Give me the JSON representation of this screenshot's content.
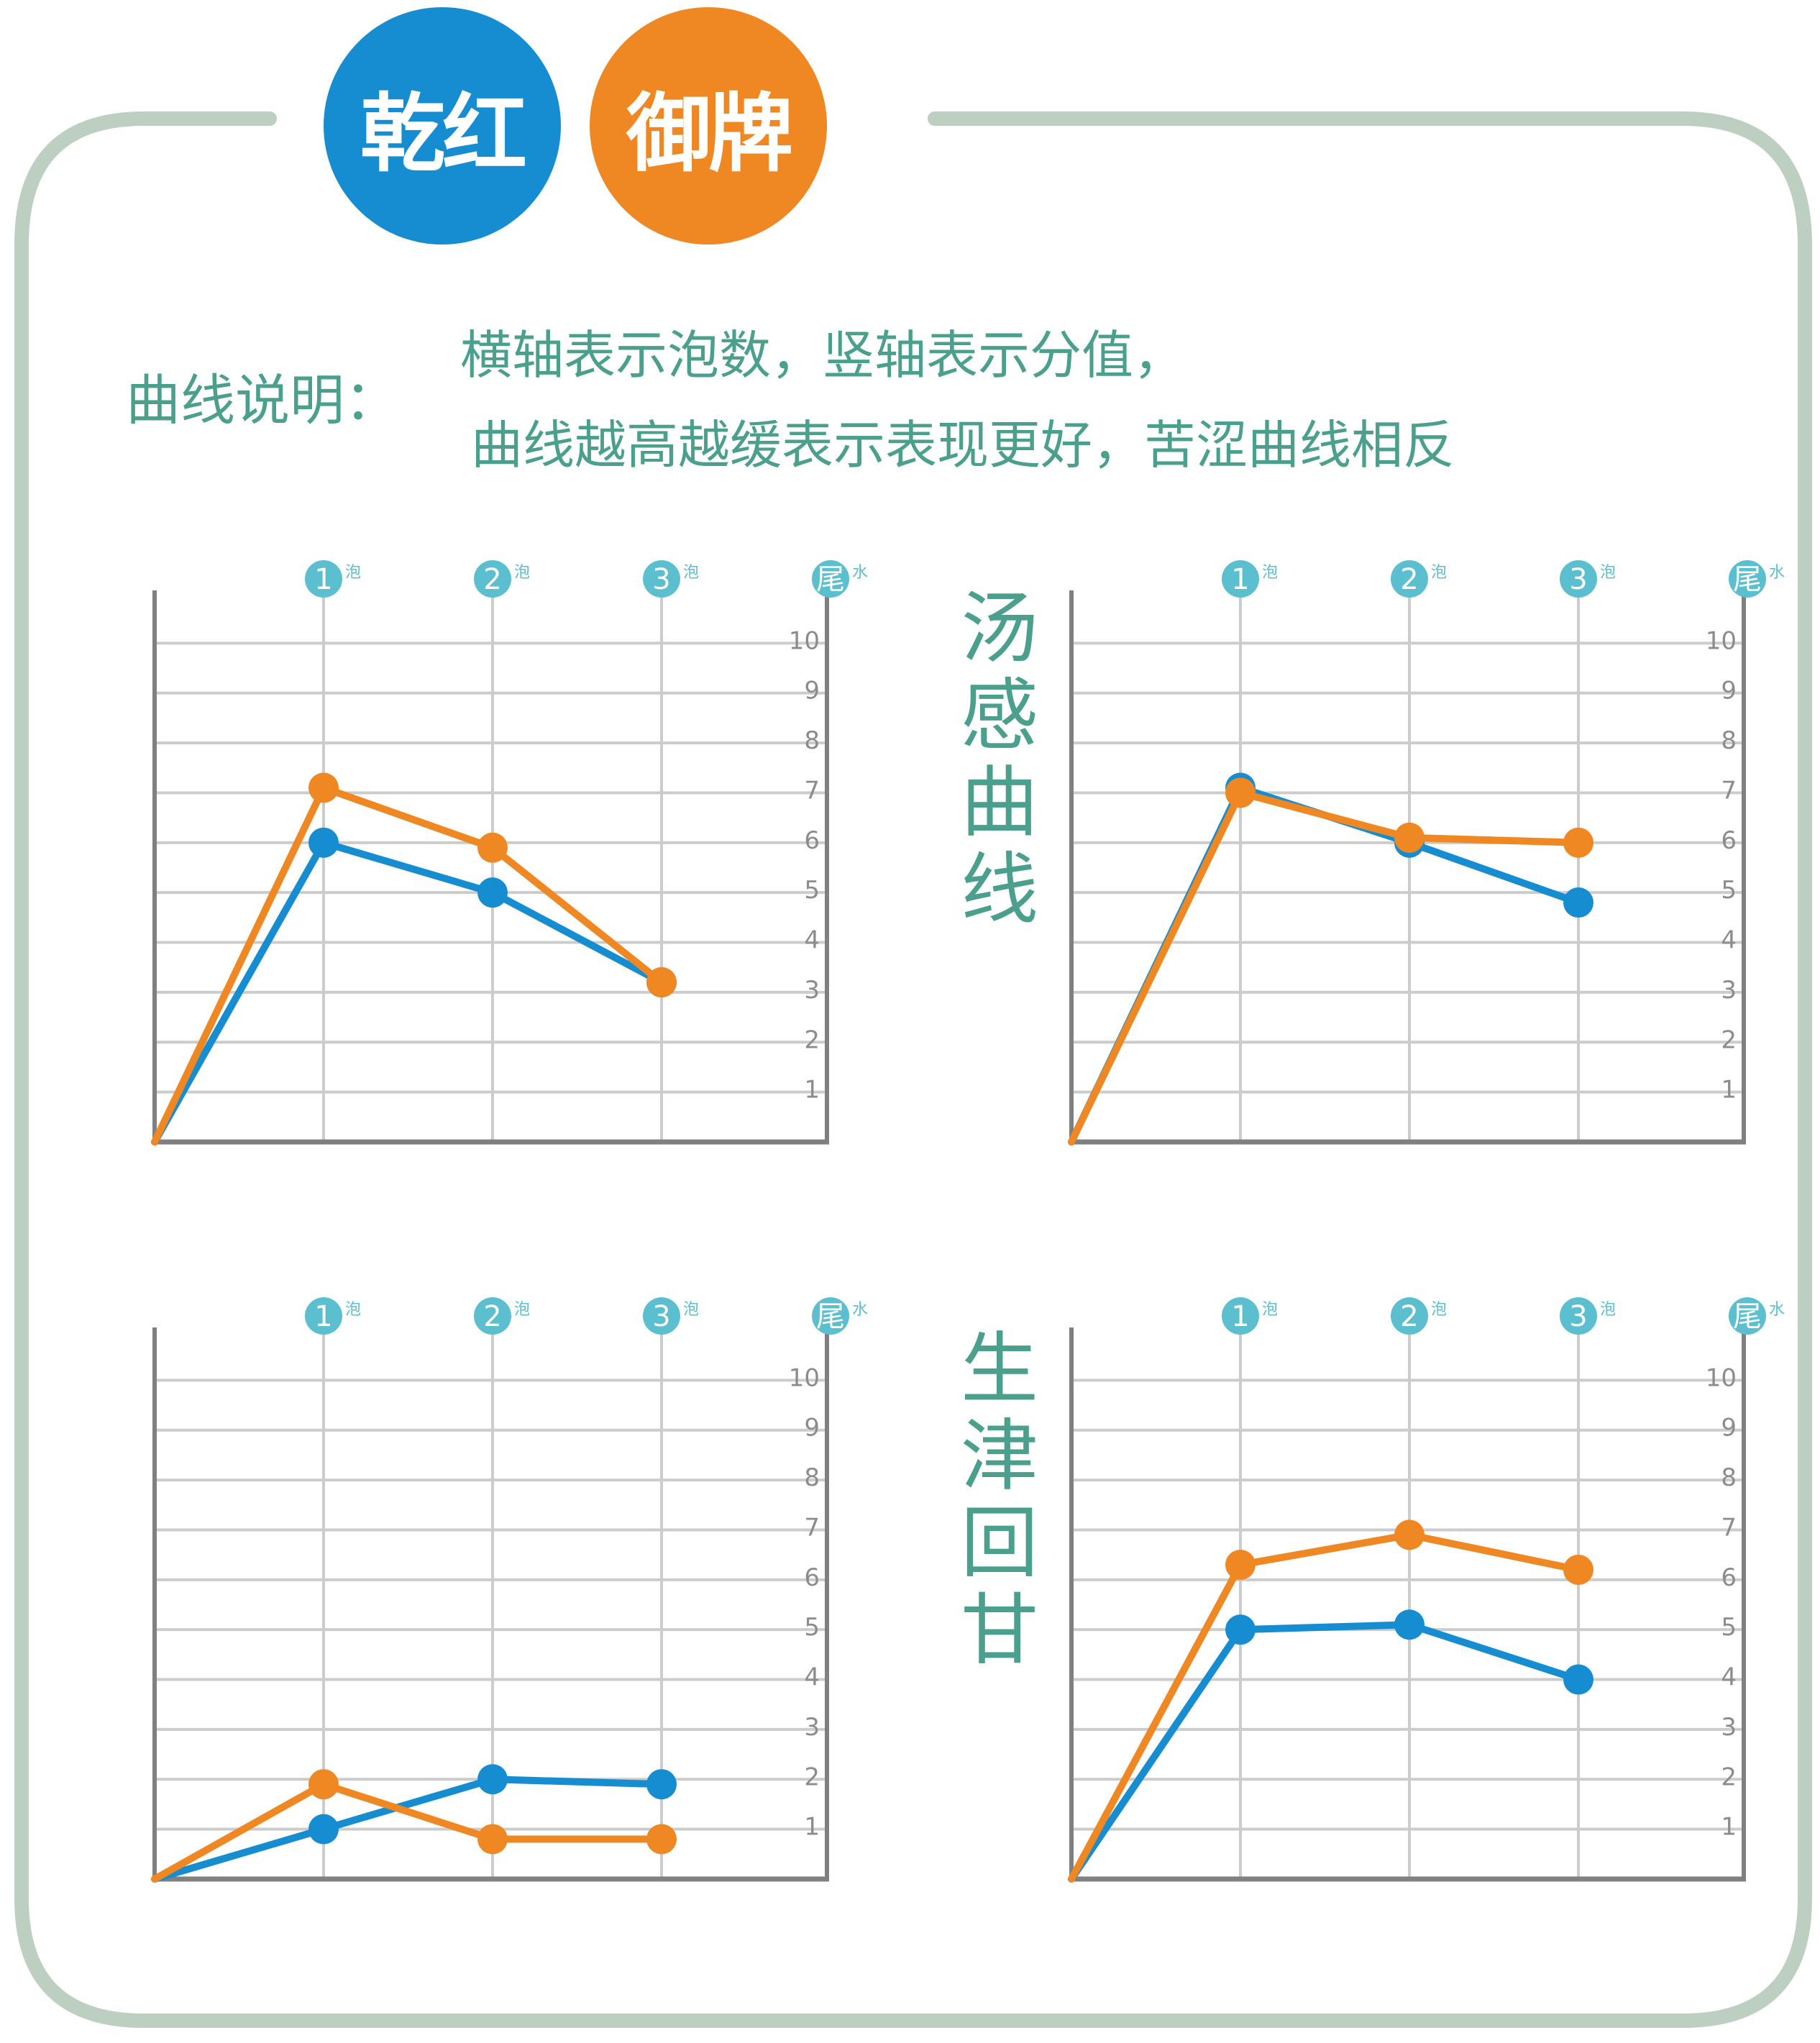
{
  "colors": {
    "frame": "#bccfc0",
    "text": "#4aa08c",
    "series_blue": "#168dd1",
    "series_orange": "#ef8722",
    "bubble": "#5bbfd0",
    "grid": "#cccccc",
    "axis": "#808080"
  },
  "header": {
    "badge_left": "乾红",
    "badge_right": "御牌"
  },
  "legend": {
    "label": "曲线说明：",
    "line1": "横轴表示泡数，竖轴表示分值，",
    "line2": "曲线越高越缓表示表现更好，苦涩曲线相反"
  },
  "titles": {
    "top_right_side": "汤感曲线",
    "bottom_right_side": "生津回甘"
  },
  "chart_data": [
    {
      "type": "line",
      "x": [
        "0",
        "1",
        "2",
        "3"
      ],
      "x_tick_labels": [
        "1",
        "2",
        "3",
        "尾"
      ],
      "x_tick_suffixes": [
        "泡",
        "泡",
        "泡",
        "水"
      ],
      "y_tick_labels": [
        "1",
        "2",
        "3",
        "4",
        "5",
        "6",
        "7",
        "8",
        "9",
        "10"
      ],
      "ylim": [
        0,
        10
      ],
      "grid": true,
      "series": [
        {
          "values": [
            0,
            6.0,
            5.0,
            3.2
          ]
        },
        {
          "values": [
            0,
            7.1,
            5.9,
            3.2
          ]
        }
      ]
    },
    {
      "type": "line",
      "x": [
        "0",
        "1",
        "2",
        "3"
      ],
      "x_tick_labels": [
        "1",
        "2",
        "3",
        "尾"
      ],
      "x_tick_suffixes": [
        "泡",
        "泡",
        "泡",
        "水"
      ],
      "y_tick_labels": [
        "1",
        "2",
        "3",
        "4",
        "5",
        "6",
        "7",
        "8",
        "9",
        "10"
      ],
      "ylim": [
        0,
        10
      ],
      "grid": true,
      "series": [
        {
          "values": [
            0,
            7.1,
            6.0,
            4.8
          ]
        },
        {
          "values": [
            0,
            7.0,
            6.1,
            6.0
          ]
        }
      ]
    },
    {
      "type": "line",
      "x": [
        "0",
        "1",
        "2",
        "3"
      ],
      "x_tick_labels": [
        "1",
        "2",
        "3",
        "尾"
      ],
      "x_tick_suffixes": [
        "泡",
        "泡",
        "泡",
        "水"
      ],
      "y_tick_labels": [
        "1",
        "2",
        "3",
        "4",
        "5",
        "6",
        "7",
        "8",
        "9",
        "10"
      ],
      "ylim": [
        0,
        10
      ],
      "grid": true,
      "series": [
        {
          "values": [
            0,
            1.0,
            2.0,
            1.9
          ]
        },
        {
          "values": [
            0,
            1.9,
            0.8,
            0.8
          ]
        }
      ]
    },
    {
      "type": "line",
      "x": [
        "0",
        "1",
        "2",
        "3"
      ],
      "x_tick_labels": [
        "1",
        "2",
        "3",
        "尾"
      ],
      "x_tick_suffixes": [
        "泡",
        "泡",
        "泡",
        "水"
      ],
      "y_tick_labels": [
        "1",
        "2",
        "3",
        "4",
        "5",
        "6",
        "7",
        "8",
        "9",
        "10"
      ],
      "ylim": [
        0,
        10
      ],
      "grid": true,
      "series": [
        {
          "values": [
            0,
            5.0,
            5.1,
            4.0
          ]
        },
        {
          "values": [
            0,
            6.3,
            6.9,
            6.2
          ]
        }
      ]
    }
  ]
}
